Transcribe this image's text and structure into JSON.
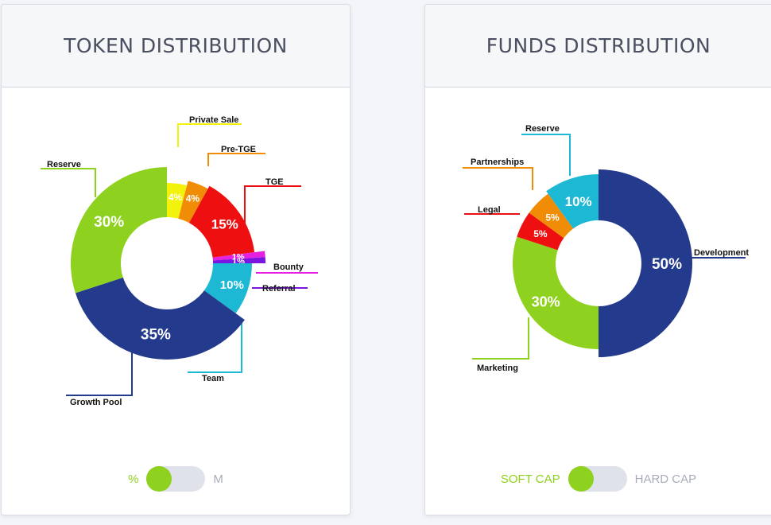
{
  "token": {
    "title": "TOKEN DISTRIBUTION",
    "toggle": {
      "left_label": "%",
      "right_label": "M",
      "selected": "%"
    }
  },
  "funds": {
    "title": "FUNDS DISTRIBUTION",
    "toggle": {
      "left_label": "SOFT CAP",
      "right_label": "HARD CAP",
      "selected": "SOFT CAP"
    }
  },
  "chart_data": [
    {
      "type": "pie",
      "title": "TOKEN DISTRIBUTION",
      "unit": "%",
      "slices": [
        {
          "label": "Private Sale",
          "value": 4,
          "display": "4%",
          "color": "#f2f20a"
        },
        {
          "label": "Pre-TGE",
          "value": 4,
          "display": "4%",
          "color": "#f08c06"
        },
        {
          "label": "TGE",
          "value": 15,
          "display": "15%",
          "color": "#ee1010"
        },
        {
          "label": "Bounty",
          "value": 1,
          "display": "1%",
          "color": "#e620e0"
        },
        {
          "label": "Referral",
          "value": 1,
          "display": "1%",
          "color": "#7a14e0"
        },
        {
          "label": "Team",
          "value": 10,
          "display": "10%",
          "color": "#1cb8d4"
        },
        {
          "label": "Growth Pool",
          "value": 35,
          "display": "35%",
          "color": "#243a8c"
        },
        {
          "label": "Reserve",
          "value": 30,
          "display": "30%",
          "color": "#8ed11e"
        }
      ]
    },
    {
      "type": "pie",
      "title": "FUNDS DISTRIBUTION",
      "unit": "%",
      "slices": [
        {
          "label": "Development",
          "value": 50,
          "display": "50%",
          "color": "#243a8c"
        },
        {
          "label": "Marketing",
          "value": 30,
          "display": "30%",
          "color": "#8ed11e"
        },
        {
          "label": "Legal",
          "value": 5,
          "display": "5%",
          "color": "#ee1010"
        },
        {
          "label": "Partnerships",
          "value": 5,
          "display": "5%",
          "color": "#f08c06"
        },
        {
          "label": "Reserve",
          "value": 10,
          "display": "10%",
          "color": "#1cb8d4"
        }
      ]
    }
  ]
}
